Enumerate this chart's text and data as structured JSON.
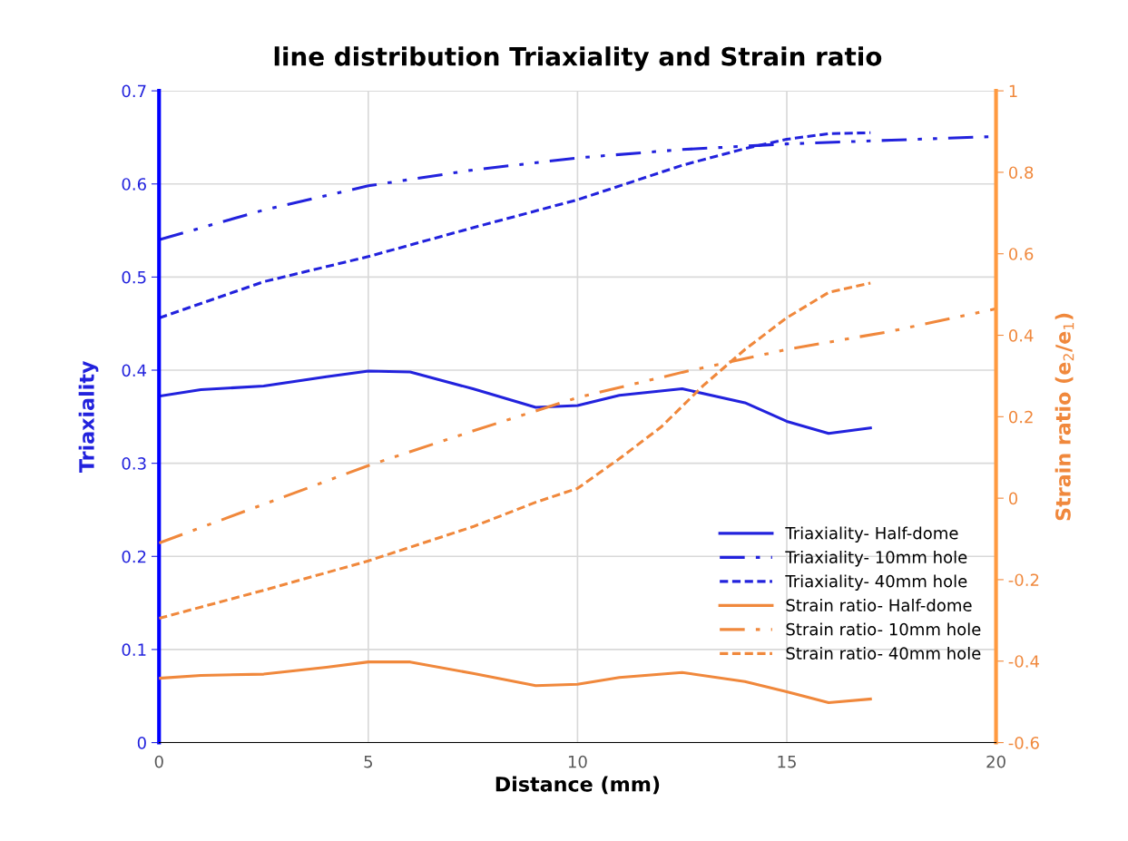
{
  "chart_data": {
    "type": "line",
    "title": "line distribution Triaxiality and Strain ratio",
    "xlabel": "Distance (mm)",
    "ylabel": "Triaxiality",
    "y2label": "Strain ratio (e$_{2}$/e$_{1}$)",
    "xlim": [
      0,
      20
    ],
    "xticks": [
      0,
      5,
      10,
      15,
      20
    ],
    "ylim": [
      0,
      0.7
    ],
    "yticks": [
      0,
      0.1,
      0.2,
      0.3,
      0.4,
      0.5,
      0.6,
      0.7
    ],
    "y2lim": [
      -0.6,
      1
    ],
    "y2ticks": [
      -0.6,
      -0.4,
      -0.2,
      0,
      0.2,
      0.4,
      0.6,
      0.8,
      1
    ],
    "grid": true,
    "legend": "bottom right",
    "marker": "none",
    "series": [
      {
        "name": "Triaxiality- Half-dome",
        "color": "#2222dd",
        "line_style": "solid",
        "x": [
          0,
          1,
          2.5,
          4,
          5,
          6,
          7.5,
          9,
          10,
          11,
          12.5,
          14,
          15,
          16,
          17
        ],
        "values": [
          0.372,
          0.379,
          0.383,
          0.393,
          0.399,
          0.398,
          0.38,
          0.36,
          0.362,
          0.373,
          0.38,
          0.365,
          0.345,
          0.332,
          0.338
        ]
      },
      {
        "name": "Triaxiality- 10mm hole",
        "color": "#2222dd",
        "line_style": "dashdot",
        "x": [
          0,
          2.5,
          5,
          7.5,
          10,
          12.5,
          15,
          17.5,
          20
        ],
        "values": [
          0.54,
          0.572,
          0.598,
          0.615,
          0.628,
          0.637,
          0.643,
          0.647,
          0.651
        ]
      },
      {
        "name": "Triaxiality- 40mm hole",
        "color": "#2222dd",
        "line_style": "dashed",
        "x": [
          0,
          2.5,
          5,
          7.5,
          10,
          12.5,
          14,
          15,
          16,
          17
        ],
        "values": [
          0.456,
          0.495,
          0.522,
          0.553,
          0.583,
          0.62,
          0.638,
          0.648,
          0.654,
          0.655
        ]
      },
      {
        "name": "Strain ratio- Half-dome",
        "color": "#f0883c",
        "line_style": "solid",
        "axis": "y2",
        "x": [
          0,
          1,
          2.5,
          4,
          5,
          6,
          7.5,
          9,
          10,
          11,
          12.5,
          14,
          15,
          16,
          17
        ],
        "values": [
          -0.442,
          -0.435,
          -0.432,
          -0.415,
          -0.402,
          -0.402,
          -0.43,
          -0.46,
          -0.457,
          -0.44,
          -0.428,
          -0.45,
          -0.475,
          -0.502,
          -0.493
        ]
      },
      {
        "name": "Strain ratio- 10mm hole",
        "color": "#f0883c",
        "line_style": "dashdot",
        "axis": "y2",
        "x": [
          0,
          2.5,
          5,
          7.5,
          10,
          12.5,
          15,
          17.5,
          20
        ],
        "values": [
          -0.11,
          -0.015,
          0.08,
          0.165,
          0.247,
          0.309,
          0.365,
          0.41,
          0.465
        ]
      },
      {
        "name": "Strain ratio- 40mm hole",
        "color": "#f0883c",
        "line_style": "dashed",
        "axis": "y2",
        "x": [
          0,
          2.5,
          5,
          7.5,
          9,
          10,
          11,
          12,
          13,
          14,
          15,
          16,
          17
        ],
        "values": [
          -0.295,
          -0.226,
          -0.154,
          -0.07,
          -0.01,
          0.024,
          0.097,
          0.175,
          0.276,
          0.365,
          0.443,
          0.505,
          0.528
        ]
      }
    ]
  }
}
